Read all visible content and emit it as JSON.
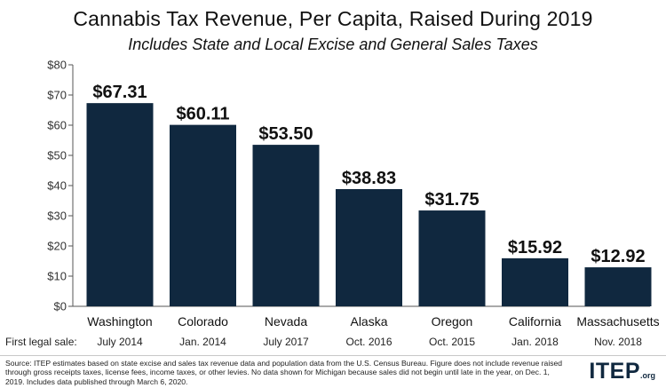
{
  "chart_data": {
    "type": "bar",
    "title": "Cannabis Tax Revenue, Per Capita, Raised During 2019",
    "subtitle": "Includes State and Local Excise and General Sales Taxes",
    "categories": [
      "Washington",
      "Colorado",
      "Nevada",
      "Alaska",
      "Oregon",
      "California",
      "Massachusetts"
    ],
    "values": [
      67.31,
      60.11,
      53.5,
      38.83,
      31.75,
      15.92,
      12.92
    ],
    "value_labels": [
      "$67.31",
      "$60.11",
      "$53.50",
      "$38.83",
      "$31.75",
      "$15.92",
      "$12.92"
    ],
    "first_legal_sale_label": "First legal sale:",
    "first_legal_sale": [
      "July 2014",
      "Jan. 2014",
      "July 2017",
      "Oct. 2016",
      "Oct. 2015",
      "Jan. 2018",
      "Nov. 2018"
    ],
    "yticks": [
      0,
      10,
      20,
      30,
      40,
      50,
      60,
      70,
      80
    ],
    "ytick_labels": [
      "$0",
      "$10",
      "$20",
      "$30",
      "$40",
      "$50",
      "$60",
      "$70",
      "$80"
    ],
    "ylim": [
      0,
      80
    ],
    "bar_color": "#10283f",
    "grid": false,
    "legend": "none"
  },
  "footer": {
    "source": "Source: ITEP estimates based on state excise and sales tax revenue data and population data from the U.S. Census Bureau. Figure does not include revenue raised through gross receipts taxes, license fees, income taxes, or other levies. No data shown for Michigan because sales did not begin until late in the year, on Dec. 1, 2019. Includes data published through March 6, 2020.",
    "logo_text": "ITEP",
    "logo_suffix": ".org"
  }
}
